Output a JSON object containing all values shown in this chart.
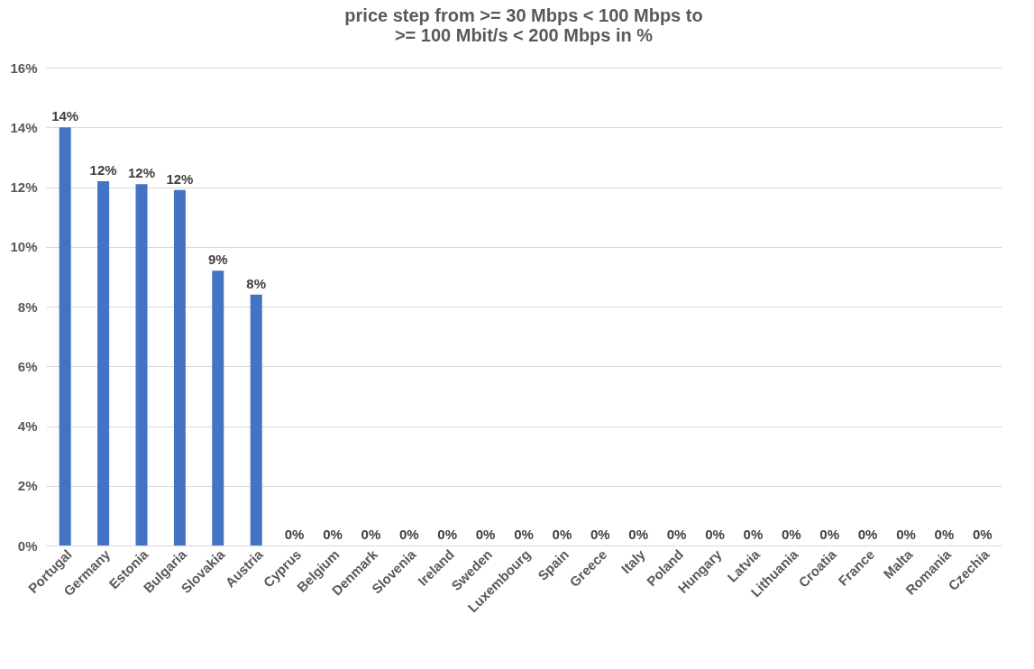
{
  "chart_data": {
    "type": "bar",
    "title": "price step from >= 30 Mbps < 100 Mbps to\n>= 100 Mbit/s < 200 Mbps in %",
    "categories": [
      "Portugal",
      "Germany",
      "Estonia",
      "Bulgaria",
      "Slovakia",
      "Austria",
      "Cyprus",
      "Belgium",
      "Denmark",
      "Slovenia",
      "Ireland",
      "Sweden",
      "Luxembourg",
      "Spain",
      "Greece",
      "Italy",
      "Poland",
      "Hungary",
      "Latvia",
      "Lithuania",
      "Croatia",
      "France",
      "Malta",
      "Romania",
      "Czechia"
    ],
    "values": [
      14.0,
      12.2,
      12.1,
      11.9,
      9.2,
      8.4,
      0,
      0,
      0,
      0,
      0,
      0,
      0,
      0,
      0,
      0,
      0,
      0,
      0,
      0,
      0,
      0,
      0,
      0,
      0
    ],
    "value_labels": [
      "14%",
      "12%",
      "12%",
      "12%",
      "9%",
      "8%",
      "0%",
      "0%",
      "0%",
      "0%",
      "0%",
      "0%",
      "0%",
      "0%",
      "0%",
      "0%",
      "0%",
      "0%",
      "0%",
      "0%",
      "0%",
      "0%",
      "0%",
      "0%",
      "0%"
    ],
    "color": "#4472c4",
    "ylim": [
      0,
      16
    ],
    "yticks": [
      {
        "value": 0,
        "label": "0%"
      },
      {
        "value": 2,
        "label": "2%"
      },
      {
        "value": 4,
        "label": "4%"
      },
      {
        "value": 6,
        "label": "6%"
      },
      {
        "value": 8,
        "label": "8%"
      },
      {
        "value": 10,
        "label": "10%"
      },
      {
        "value": 12,
        "label": "12%"
      },
      {
        "value": 14,
        "label": "14%"
      },
      {
        "value": 16,
        "label": "16%"
      }
    ],
    "grid": "y"
  }
}
